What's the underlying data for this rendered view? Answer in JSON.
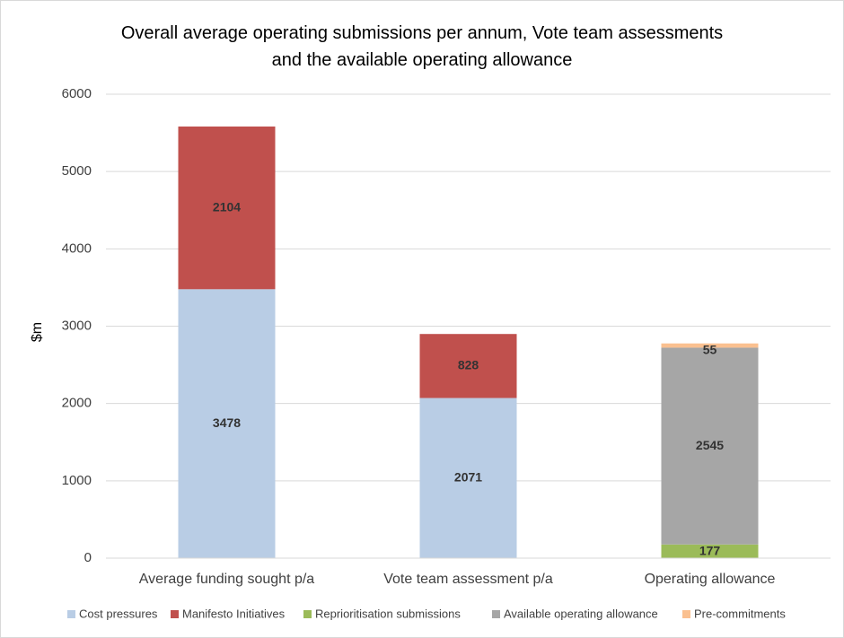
{
  "chart_data": {
    "type": "stacked_bar",
    "title": "Overall average operating submissions per annum, Vote team assessments\nand the available operating allowance",
    "y_label": "$m",
    "categories": [
      "Average funding sought p/a",
      "Vote team assessment p/a",
      "Operating allowance"
    ],
    "series": [
      {
        "name": "Cost pressures",
        "color": "#b9cde5",
        "values": [
          3478,
          2071,
          null
        ]
      },
      {
        "name": "Manifesto Initiatives",
        "color": "#c0504d",
        "values": [
          2104,
          828,
          null
        ]
      },
      {
        "name": "Reprioritisation submissions",
        "color": "#9bbb59",
        "values": [
          null,
          null,
          177
        ]
      },
      {
        "name": "Available operating allowance",
        "color": "#a6a6a6",
        "values": [
          null,
          null,
          2545
        ]
      },
      {
        "name": "Pre-commitments",
        "color": "#fac090",
        "values": [
          null,
          null,
          55
        ]
      }
    ],
    "ylim": [
      0,
      6000
    ],
    "yticks": [
      0,
      1000,
      2000,
      3000,
      4000,
      5000,
      6000
    ],
    "grid": true,
    "legend": "bottom"
  }
}
